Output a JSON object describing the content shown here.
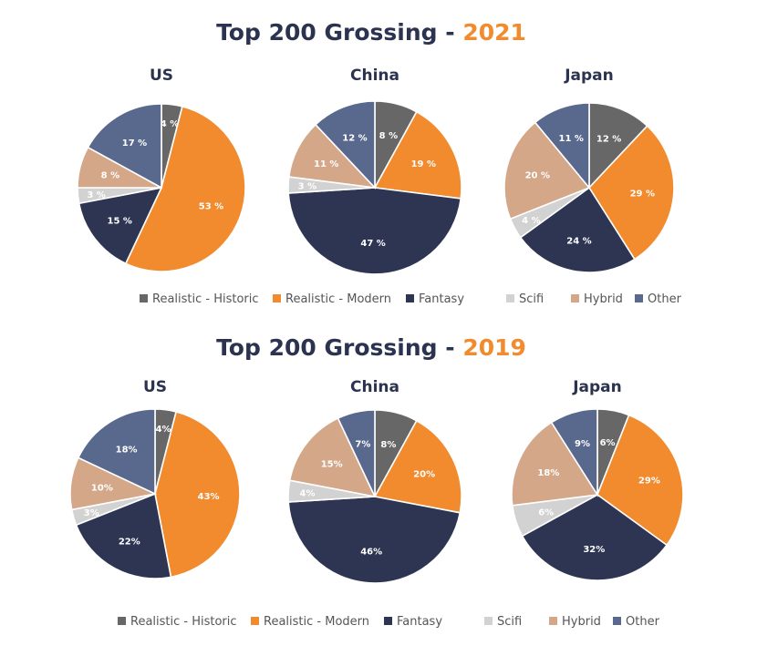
{
  "categories": [
    "Realistic - Historic",
    "Realistic - Modern",
    "Fantasy",
    "Scifi",
    "Hybrid",
    "Other"
  ],
  "colors": {
    "Realistic - Historic": "#676767",
    "Realistic - Modern": "#f28a2e",
    "Fantasy": "#2d3552",
    "Scifi": "#d2d2d2",
    "Hybrid": "#d3a788",
    "Other": "#59698e",
    "title_dark": "#2b3350",
    "title_accent": "#f28a2e"
  },
  "chart_data": [
    {
      "type": "pie",
      "section_title": "Top 200 Grossing - ",
      "year": "2021",
      "legend_labels": [
        "Realistic - Historic",
        "Realistic - Modern",
        "Fantasy",
        "Scifi",
        "Hybrid",
        "Other"
      ],
      "pies": [
        {
          "title": "US",
          "values": [
            4,
            53,
            15,
            3,
            8,
            17
          ],
          "labels": [
            "4 %",
            "53 %",
            "15 %",
            "3 %",
            "8 %",
            "17 %"
          ]
        },
        {
          "title": "China",
          "values": [
            8,
            19,
            47,
            3,
            11,
            12
          ],
          "labels": [
            "8 %",
            "19 %",
            "47 %",
            "3 %",
            "11 %",
            "12 %"
          ]
        },
        {
          "title": "Japan",
          "values": [
            12,
            29,
            24,
            4,
            20,
            11
          ],
          "labels": [
            "12 %",
            "29 %",
            "24 %",
            "4 %",
            "20 %",
            "11 %"
          ]
        }
      ]
    },
    {
      "type": "pie",
      "section_title": "Top 200 Grossing - ",
      "year": "2019",
      "legend_labels": [
        "Realistic - Historic",
        "Realistic - Modern",
        "Fantasy",
        "Scifi",
        "Hybrid",
        "Other"
      ],
      "pies": [
        {
          "title": "US",
          "values": [
            4,
            43,
            22,
            3,
            10,
            18
          ],
          "labels": [
            "4%",
            "43%",
            "22%",
            "3%",
            "10%",
            "18%"
          ]
        },
        {
          "title": "China",
          "values": [
            8,
            20,
            46,
            4,
            15,
            7
          ],
          "labels": [
            "8%",
            "20%",
            "46%",
            "4%",
            "15%",
            "7%"
          ]
        },
        {
          "title": "Japan",
          "values": [
            6,
            29,
            32,
            6,
            18,
            9
          ],
          "labels": [
            "6%",
            "29%",
            "32%",
            "6%",
            "18%",
            "9%"
          ]
        }
      ]
    }
  ]
}
